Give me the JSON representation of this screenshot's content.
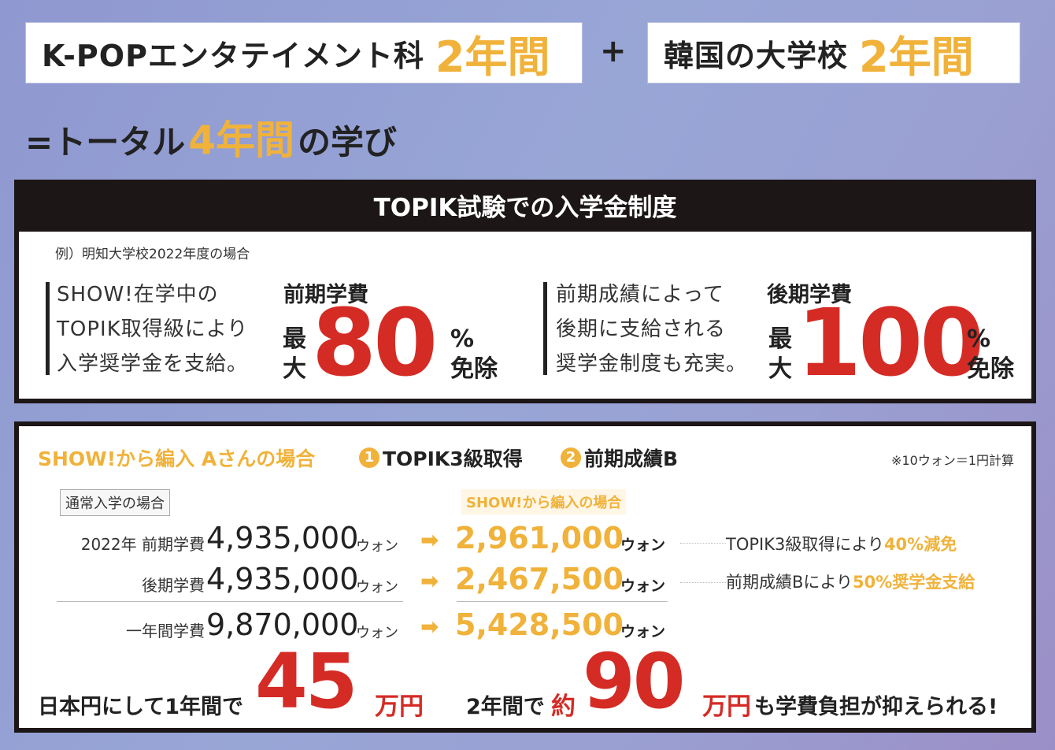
{
  "header": {
    "box1_text": "K-POPエンタテイメント科",
    "box1_years": "2年間",
    "plus": "+",
    "box2_text": "韓国の大学校",
    "box2_years": "2年間",
    "total_prefix": "=トータル",
    "total_years": "4年間",
    "total_suffix": "の学び"
  },
  "topik": {
    "title": "TOPIK試験での入学金制度",
    "example": "例）明知大学校2022年度の場合",
    "left": {
      "desc_lines": [
        "SHOW!在学中の",
        "TOPIK取得級により",
        "入学奨学金を支給。"
      ],
      "label": "前期学費",
      "max": [
        "最",
        "大"
      ],
      "value": "80",
      "pct": "%",
      "exempt": "免除"
    },
    "right": {
      "desc_lines": [
        "前期成績によって",
        "後期に支給される",
        "奨学金制度も充実。"
      ],
      "label": "後期学費",
      "max": [
        "最",
        "大"
      ],
      "value": "100",
      "pct": "%",
      "exempt": "免除"
    }
  },
  "case": {
    "title": "SHOW!から編入 Aさんの場合",
    "cond1_num": "1",
    "cond1": "TOPIK3級取得",
    "cond2_num": "2",
    "cond2": "前期成績B",
    "note": "※10ウォン＝1円計算",
    "tag_normal": "通常入学の場合",
    "tag_show": "SHOW!から編入の場合",
    "rows": [
      {
        "label": "2022年  前期学費",
        "normal": "4,935,000",
        "unit": "ウォン",
        "show": "2,961,000",
        "show_unit": "ウォン",
        "remark": "TOPIK3級取得により",
        "remark_hl": "40%減免"
      },
      {
        "label": "後期学費",
        "normal": "4,935,000",
        "unit": "ウォン",
        "show": "2,467,500",
        "show_unit": "ウォン",
        "remark": "前期成績Bにより",
        "remark_hl": "50%奨学金支給"
      },
      {
        "label": "一年間学費",
        "normal": "9,870,000",
        "unit": "ウォン",
        "show": "5,428,500",
        "show_unit": "ウォン",
        "remark": "",
        "remark_hl": ""
      }
    ],
    "arrow": "➡",
    "footer": {
      "p1": "日本円にして1年間で",
      "v1": "45",
      "u1": "万円",
      "p2": "2年間で",
      "about": "約",
      "v2": "90",
      "u2": "万円",
      "p3": "も学費負担が抑えられる!"
    }
  },
  "colors": {
    "accent": "#f0b23a",
    "red": "#d52b25",
    "dark": "#1c1616"
  }
}
